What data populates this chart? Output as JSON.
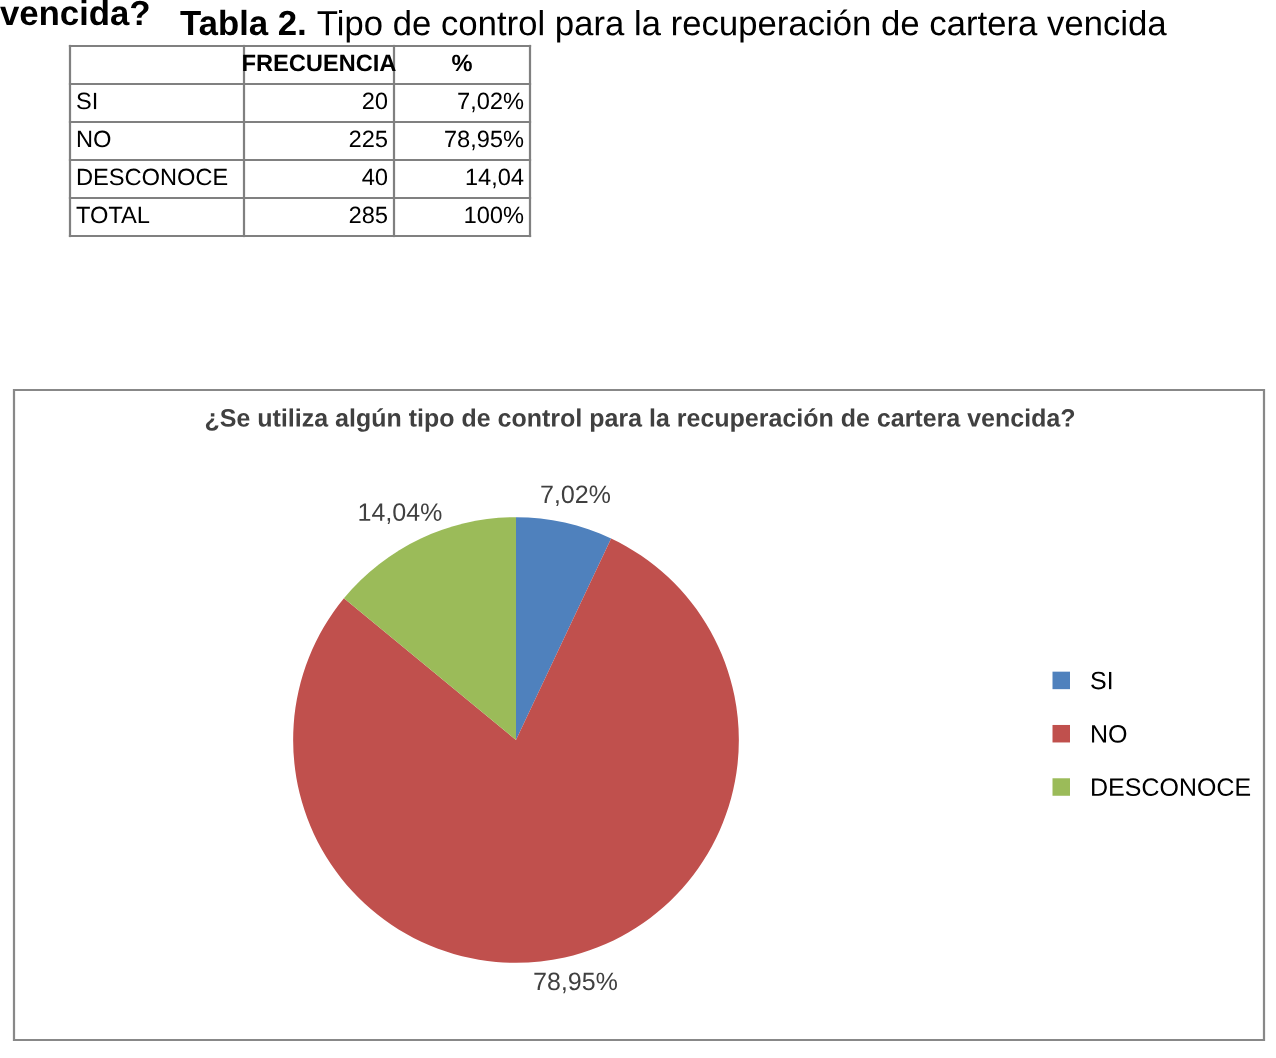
{
  "chart_data": {
    "type": "pie",
    "title": "¿Se utiliza algún tipo de control para la recuperación de cartera vencida?",
    "categories": [
      "SI",
      "NO",
      "DESCONOCE"
    ],
    "values": [
      7.02,
      78.95,
      14.04
    ],
    "colors": [
      "#4f81bd",
      "#c0504d",
      "#9bbb59"
    ],
    "value_labels": [
      "7,02%",
      "78,95%",
      "14,04%"
    ],
    "legend": "right",
    "annotations": [
      "vencida?",
      "Tabla 2.",
      " Tipo de control para la recuperación de cartera vencida",
      "FRECUENCIA",
      "%",
      "SI",
      "20",
      "7,02%",
      "NO",
      "225",
      "78,95%",
      "DESCONOCE",
      "40",
      "14,04",
      "TOTAL",
      "285",
      "100%"
    ]
  }
}
